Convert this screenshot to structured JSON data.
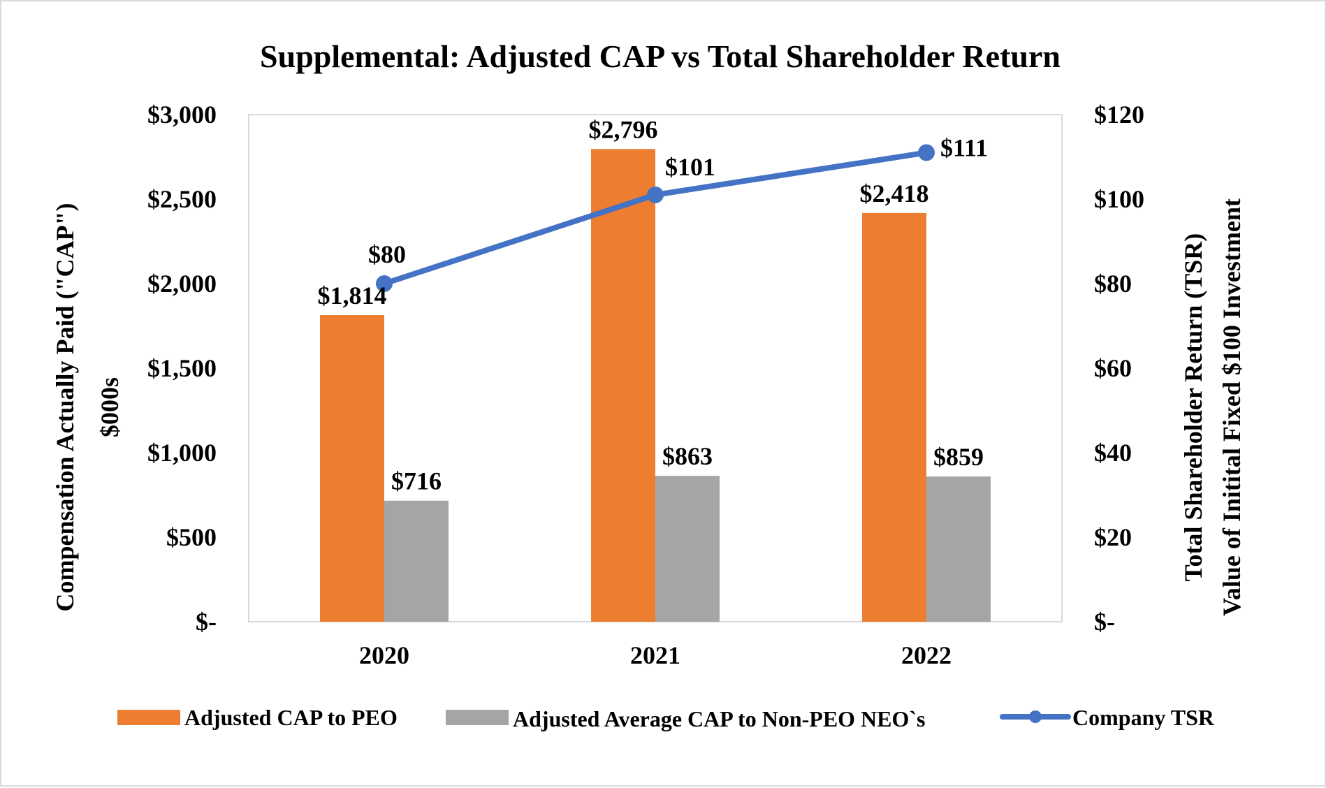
{
  "chart_data": {
    "type": "bar",
    "title": "Supplemental:  Adjusted CAP vs Total Shareholder Return",
    "categories": [
      "2020",
      "2021",
      "2022"
    ],
    "left_axis": {
      "label_lines": [
        "Compensation  Actually  Paid  (\"CAP\")",
        "$000s"
      ],
      "ylim": [
        0,
        3000
      ],
      "ticks": [
        0,
        500,
        1000,
        1500,
        2000,
        2500,
        3000
      ],
      "tick_labels": [
        "$-",
        "$500",
        "$1,000",
        "$1,500",
        "$2,000",
        "$2,500",
        "$3,000"
      ]
    },
    "right_axis": {
      "label_lines": [
        "Total Shareholder  Return  (TSR)",
        "Value of Initital Fixed $100 Investment"
      ],
      "ylim": [
        0,
        120
      ],
      "ticks": [
        0,
        20,
        40,
        60,
        80,
        100,
        120
      ],
      "tick_labels": [
        "$-",
        "$20",
        "$40",
        "$60",
        "$80",
        "$100",
        "$120"
      ]
    },
    "series": [
      {
        "name": "Adjusted CAP to PEO",
        "kind": "bar",
        "axis": "left",
        "color": "#ed7d31",
        "values": [
          1814,
          2796,
          2418
        ],
        "labels": [
          "$1,814",
          "$2,796",
          "$2,418"
        ]
      },
      {
        "name": "Adjusted Average CAP to Non-PEO NEO`s",
        "kind": "bar",
        "axis": "left",
        "color": "#a5a5a5",
        "values": [
          716,
          863,
          859
        ],
        "labels": [
          "$716",
          "$863",
          "$859"
        ]
      },
      {
        "name": "Company TSR",
        "kind": "line",
        "axis": "right",
        "color": "#4472c4",
        "values": [
          80,
          101,
          111
        ],
        "labels": [
          "$80",
          "$101",
          "$111"
        ]
      }
    ],
    "legend_position": "bottom",
    "grid": false
  }
}
